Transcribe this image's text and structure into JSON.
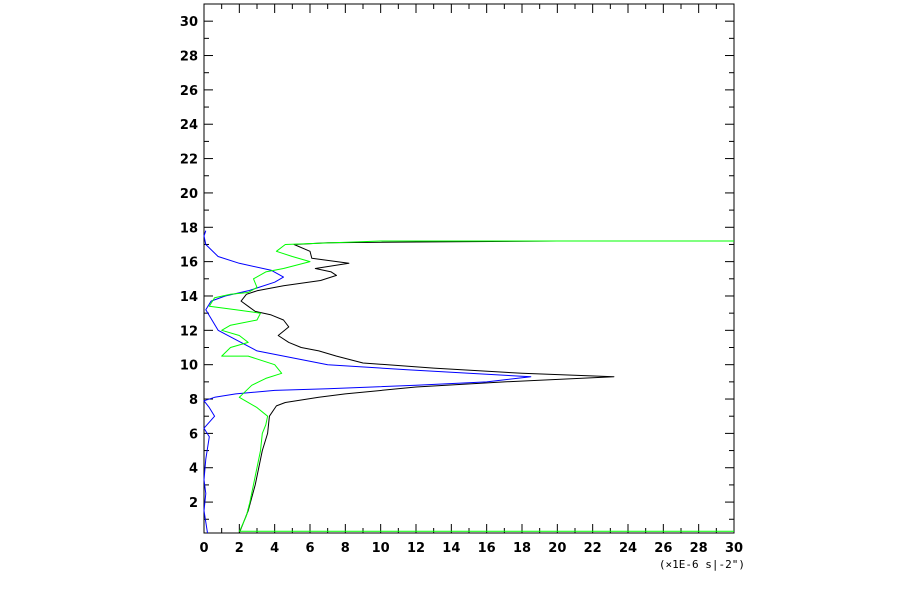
{
  "chart_data": {
    "type": "line",
    "title": "",
    "xlabel": "",
    "ylabel": "",
    "x_unit_label": "(×1E-6 s|-2\")",
    "xlim": [
      0,
      30
    ],
    "ylim": [
      0.2,
      31
    ],
    "x_ticks": [
      "0",
      "2",
      "4",
      "6",
      "8",
      "10",
      "12",
      "14",
      "16",
      "18",
      "20",
      "22",
      "24",
      "26",
      "28",
      "30"
    ],
    "y_ticks": [
      "2",
      "4",
      "6",
      "8",
      "10",
      "12",
      "14",
      "16",
      "18",
      "20",
      "22",
      "24",
      "26",
      "28",
      "30"
    ],
    "grid": false,
    "legend": "none",
    "series": [
      {
        "color": "#000000",
        "points": [
          [
            2.0,
            0.2
          ],
          [
            2.5,
            1.5
          ],
          [
            2.9,
            3.0
          ],
          [
            3.3,
            5.0
          ],
          [
            3.6,
            6.0
          ],
          [
            3.7,
            7.0
          ],
          [
            4.1,
            7.6
          ],
          [
            4.6,
            7.8
          ],
          [
            6.5,
            8.1
          ],
          [
            8.0,
            8.3
          ],
          [
            12.0,
            8.7
          ],
          [
            17.0,
            9.0
          ],
          [
            23.2,
            9.3
          ],
          [
            18.0,
            9.5
          ],
          [
            13.0,
            9.8
          ],
          [
            9.0,
            10.1
          ],
          [
            7.5,
            10.5
          ],
          [
            6.5,
            10.8
          ],
          [
            5.5,
            11.0
          ],
          [
            4.8,
            11.3
          ],
          [
            4.2,
            11.7
          ],
          [
            4.8,
            12.2
          ],
          [
            4.5,
            12.6
          ],
          [
            3.8,
            12.9
          ],
          [
            2.9,
            13.1
          ],
          [
            2.5,
            13.4
          ],
          [
            2.1,
            13.7
          ],
          [
            2.4,
            14.1
          ],
          [
            3.0,
            14.3
          ],
          [
            4.5,
            14.6
          ],
          [
            6.6,
            14.9
          ],
          [
            7.5,
            15.2
          ],
          [
            7.2,
            15.4
          ],
          [
            6.3,
            15.6
          ],
          [
            8.2,
            15.9
          ],
          [
            6.1,
            16.2
          ],
          [
            6.0,
            16.6
          ],
          [
            5.1,
            17.0
          ],
          [
            7.0,
            17.1
          ],
          [
            20.0,
            17.2
          ],
          [
            30.0,
            17.2
          ]
        ]
      },
      {
        "color": "#0000ff",
        "points": [
          [
            0.2,
            0.2
          ],
          [
            0.0,
            1.5
          ],
          [
            0.1,
            2.5
          ],
          [
            0.0,
            3.3
          ],
          [
            0.1,
            4.5
          ],
          [
            0.3,
            5.8
          ],
          [
            0.0,
            6.3
          ],
          [
            0.6,
            7.0
          ],
          [
            0.3,
            7.5
          ],
          [
            0.0,
            7.9
          ],
          [
            0.6,
            8.1
          ],
          [
            1.8,
            8.3
          ],
          [
            4.0,
            8.5
          ],
          [
            7.0,
            8.6
          ],
          [
            12.0,
            8.8
          ],
          [
            16.0,
            9.0
          ],
          [
            18.5,
            9.3
          ],
          [
            15.0,
            9.5
          ],
          [
            11.5,
            9.7
          ],
          [
            7.0,
            10.0
          ],
          [
            3.0,
            10.8
          ],
          [
            0.8,
            12.0
          ],
          [
            0.1,
            13.2
          ],
          [
            0.4,
            13.7
          ],
          [
            1.2,
            14.0
          ],
          [
            2.5,
            14.3
          ],
          [
            4.0,
            14.8
          ],
          [
            4.5,
            15.1
          ],
          [
            3.8,
            15.5
          ],
          [
            2.0,
            15.9
          ],
          [
            0.8,
            16.3
          ],
          [
            0.1,
            17.0
          ],
          [
            0.0,
            17.5
          ],
          [
            0.1,
            17.8
          ]
        ]
      },
      {
        "color": "#00ff00",
        "points": [
          [
            30.0,
            0.3
          ],
          [
            2.0,
            0.3
          ],
          [
            2.1,
            0.5
          ],
          [
            2.4,
            1.2
          ],
          [
            2.6,
            2.0
          ],
          [
            2.9,
            3.5
          ],
          [
            3.2,
            5.0
          ],
          [
            3.3,
            6.0
          ],
          [
            3.5,
            6.5
          ],
          [
            3.6,
            7.0
          ],
          [
            3.0,
            7.5
          ],
          [
            2.0,
            8.1
          ],
          [
            2.7,
            8.8
          ],
          [
            3.5,
            9.2
          ],
          [
            4.4,
            9.5
          ],
          [
            4.0,
            10.0
          ],
          [
            2.5,
            10.5
          ],
          [
            1.0,
            10.5
          ],
          [
            1.5,
            11.0
          ],
          [
            2.5,
            11.3
          ],
          [
            2.0,
            11.7
          ],
          [
            1.0,
            12.0
          ],
          [
            1.5,
            12.3
          ],
          [
            3.0,
            12.6
          ],
          [
            3.2,
            13.0
          ],
          [
            1.8,
            13.2
          ],
          [
            0.3,
            13.4
          ],
          [
            0.6,
            13.9
          ],
          [
            1.5,
            14.1
          ],
          [
            2.5,
            14.2
          ],
          [
            3.0,
            14.5
          ],
          [
            2.8,
            15.0
          ],
          [
            3.5,
            15.4
          ],
          [
            4.5,
            15.6
          ],
          [
            6.0,
            16.0
          ],
          [
            5.0,
            16.3
          ],
          [
            4.1,
            16.6
          ],
          [
            4.6,
            17.0
          ],
          [
            10.0,
            17.2
          ],
          [
            30.0,
            17.2
          ]
        ]
      }
    ]
  }
}
